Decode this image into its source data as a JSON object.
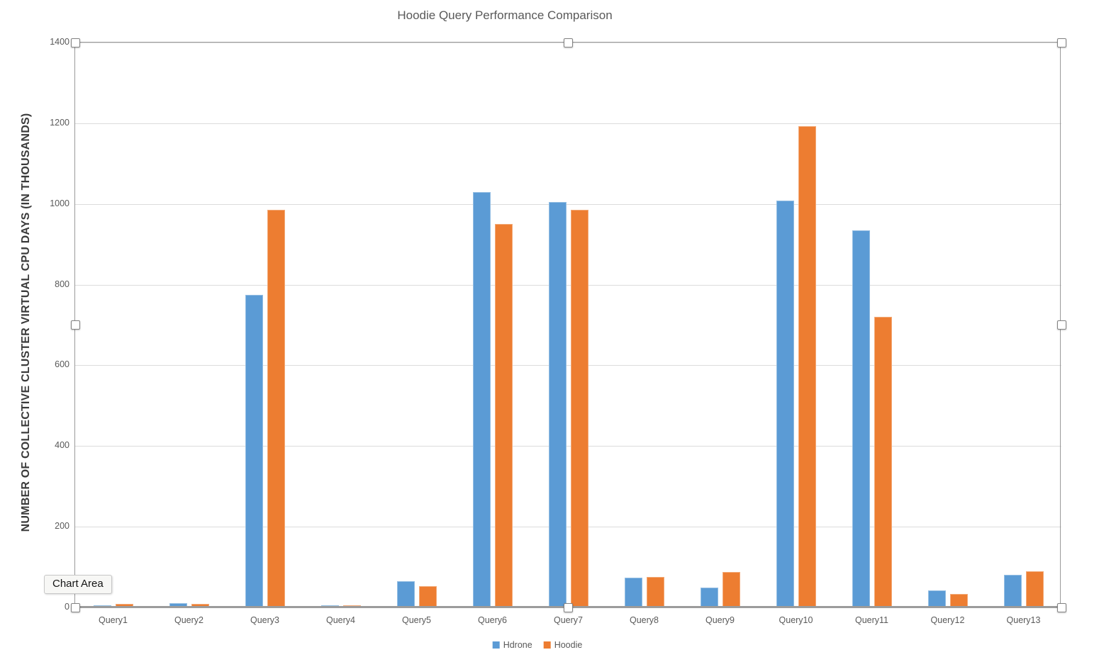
{
  "tooltip": {
    "label": "Chart Area"
  },
  "chart_data": {
    "type": "bar",
    "title": "Hoodie Query Performance Comparison",
    "xlabel": "",
    "ylabel": "NUMBER OF COLLECTIVE CLUSTER VIRTUAL CPU DAYS (IN THOUSANDS)",
    "categories": [
      "Query1",
      "Query2",
      "Query3",
      "Query4",
      "Query5",
      "Query6",
      "Query7",
      "Query8",
      "Query9",
      "Query10",
      "Query11",
      "Query12",
      "Query13"
    ],
    "series": [
      {
        "name": "Hdrone",
        "color": "#5B9BD5",
        "values": [
          6,
          10,
          775,
          5,
          65,
          1030,
          1005,
          74,
          49,
          1008,
          935,
          43,
          81
        ]
      },
      {
        "name": "Hoodie",
        "color": "#ED7D31",
        "values": [
          9,
          9,
          985,
          5,
          52,
          950,
          985,
          76,
          87,
          1193,
          720,
          34,
          90
        ]
      }
    ],
    "ylim": [
      0,
      1400
    ],
    "yticks": [
      0,
      200,
      400,
      600,
      800,
      1000,
      1200,
      1400
    ],
    "grid": true,
    "legend_position": "bottom",
    "title_color": "#595959",
    "axis_text_color": "#595959"
  }
}
